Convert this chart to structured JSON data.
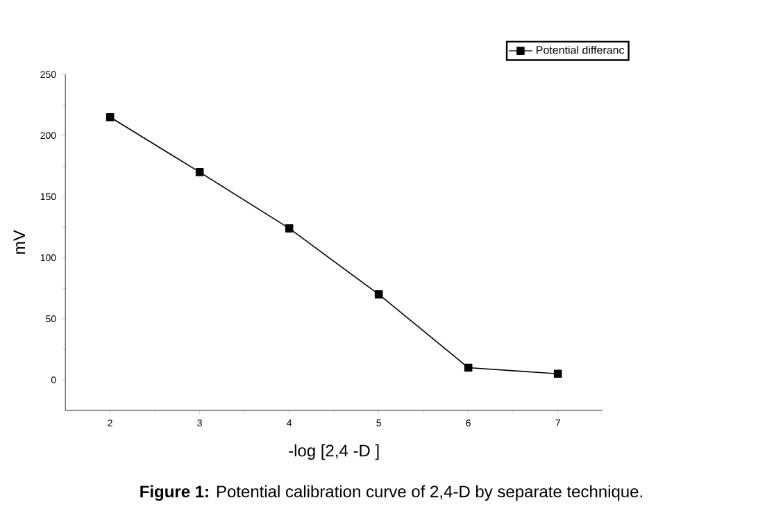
{
  "chart_data": {
    "type": "line",
    "xlabel": "-log [2,4 -D ]",
    "ylabel": "mV",
    "annotations": [
      "**Figure 1:** Potential calibration curve of 2,4-D by separate technique."
    ],
    "x": [
      2,
      3,
      4,
      5,
      6,
      7
    ],
    "series": [
      {
        "name": "Potential differanc",
        "color": "#000000",
        "values": [
          215,
          170,
          124,
          70,
          10,
          5
        ]
      }
    ],
    "xlim": [
      1.5,
      7.5
    ],
    "xticks": [
      2,
      3,
      4,
      5,
      6,
      7
    ],
    "ylim": [
      -25,
      250
    ],
    "yticks": [
      0,
      50,
      100,
      150,
      200,
      250
    ],
    "marker": "square",
    "line_style": "solid",
    "legend": "top right",
    "grid": false
  }
}
